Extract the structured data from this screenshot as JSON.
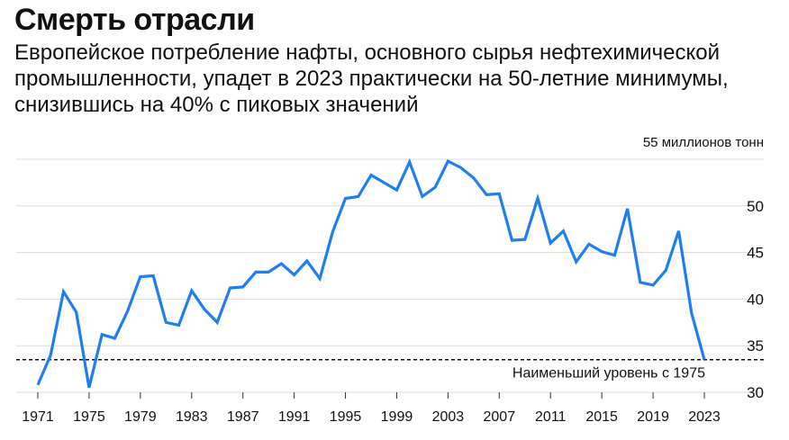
{
  "title": "Смерть отрасли",
  "subtitle": "Европейское потребление нафты, основного сырья нефтехимической промышленности, упадет в 2023 практически на 50-летние минимумы, снизившись на 40% с пиковых значений",
  "chart_data": {
    "type": "line",
    "title": "Смерть отрасли",
    "unit_label": "55 миллионов тонн",
    "xlabel": "",
    "ylabel": "",
    "ylim": [
      30,
      55
    ],
    "xlim": [
      1971,
      2023
    ],
    "yticks": [
      30,
      35,
      40,
      45,
      50
    ],
    "xticks": [
      1971,
      1975,
      1979,
      1983,
      1987,
      1991,
      1995,
      1999,
      2003,
      2007,
      2011,
      2015,
      2019,
      2023
    ],
    "line_color": "#1f7ef2",
    "x": [
      1971,
      1972,
      1973,
      1974,
      1975,
      1976,
      1977,
      1978,
      1979,
      1980,
      1981,
      1982,
      1983,
      1984,
      1985,
      1986,
      1987,
      1988,
      1989,
      1990,
      1991,
      1992,
      1993,
      1994,
      1995,
      1996,
      1997,
      1998,
      1999,
      2000,
      2001,
      2002,
      2003,
      2004,
      2005,
      2006,
      2007,
      2008,
      2009,
      2010,
      2011,
      2012,
      2013,
      2014,
      2015,
      2016,
      2017,
      2018,
      2019,
      2020,
      2021,
      2022,
      2023
    ],
    "values": [
      30.8,
      34,
      40.8,
      38.6,
      30.5,
      36.2,
      35.8,
      38.7,
      42.4,
      42.5,
      37.5,
      37.2,
      40.9,
      38.9,
      37.5,
      41.2,
      41.3,
      42.9,
      42.9,
      43.8,
      42.6,
      44.1,
      42.2,
      47.2,
      50.8,
      51,
      53.3,
      52.5,
      51.7,
      54.7,
      51,
      52,
      54.8,
      54.1,
      53,
      51.2,
      51.3,
      46.3,
      46.4,
      50.8,
      46,
      47.3,
      44,
      45.9,
      45.1,
      44.7,
      49.7,
      41.8,
      41.5,
      43.1,
      47.3,
      38.5,
      33.5
    ],
    "reference_line": {
      "value": 33.5,
      "style": "dashed",
      "label": "Наименьший уровень с 1975"
    }
  }
}
